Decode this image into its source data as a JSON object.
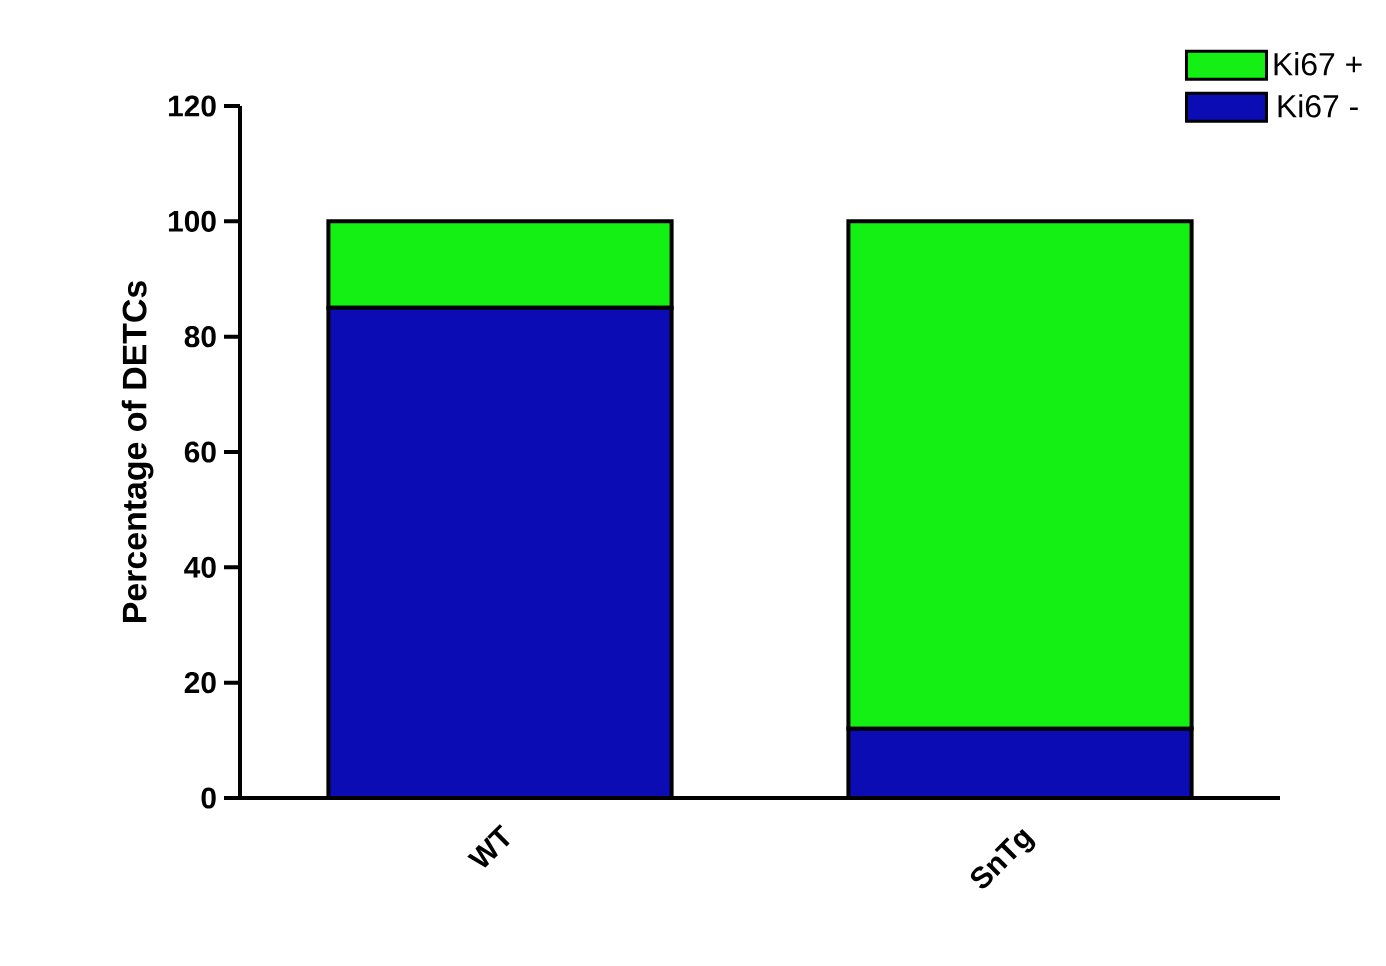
{
  "chart_data": {
    "type": "bar",
    "stacked": true,
    "ylabel": "Percentage of DETCs",
    "categories": [
      "WT",
      "SnTg"
    ],
    "series": [
      {
        "name": "Ki67 -",
        "color": "#0c0cb4",
        "values": [
          85,
          12
        ]
      },
      {
        "name": "Ki67 +",
        "color": "#14f014",
        "values": [
          15,
          88
        ]
      }
    ],
    "ylim": [
      0,
      120
    ],
    "yticks": [
      0,
      20,
      40,
      60,
      80,
      100,
      120
    ],
    "legend": "top right"
  }
}
